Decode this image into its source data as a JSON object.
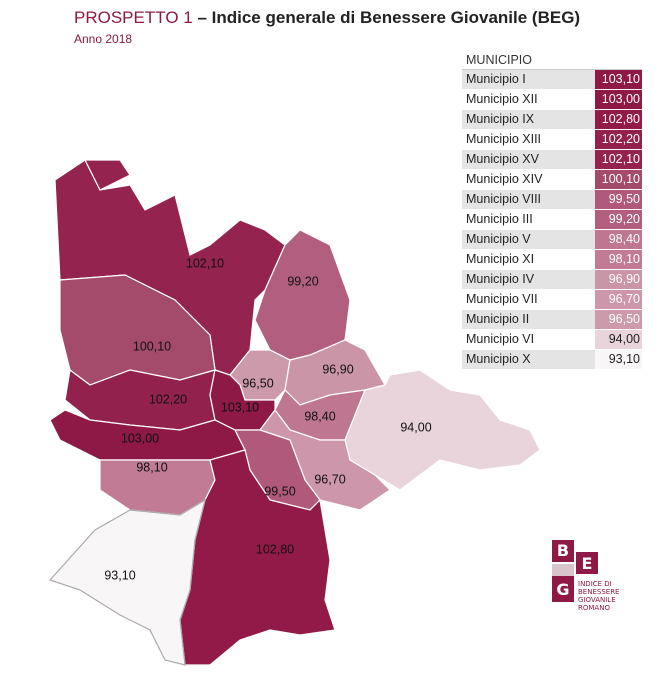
{
  "header": {
    "title_prefix": "PROSPETTO 1",
    "title_rest": "– Indice generale di Benessere Giovanile (BEG)",
    "subtitle": "Anno 2018"
  },
  "table": {
    "header": "MUNICIPIO",
    "rows": [
      [
        "Municipio I",
        "103,10"
      ],
      [
        "Municipio XII",
        "103,00"
      ],
      [
        "Municipio IX",
        "102,80"
      ],
      [
        "Municipio XIII",
        "102,20"
      ],
      [
        "Municipio XV",
        "102,10"
      ],
      [
        "Municipio XIV",
        "100,10"
      ],
      [
        "Municipio VIII",
        "99,50"
      ],
      [
        "Municipio III",
        "99,20"
      ],
      [
        "Municipio V",
        "98,40"
      ],
      [
        "Municipio XI",
        "98,10"
      ],
      [
        "Municipio IV",
        "96,90"
      ],
      [
        "Municipio VII",
        "96,70"
      ],
      [
        "Municipio II",
        "96,50"
      ],
      [
        "Municipio VI",
        "94,00"
      ],
      [
        "Municipio X",
        "93,10"
      ]
    ]
  },
  "map": {
    "labels": [
      "102,10",
      "99,20",
      "100,10",
      "96,50",
      "96,90",
      "102,20",
      "103,10",
      "98,40",
      "94,00",
      "103,00",
      "98,10",
      "96,70",
      "99,50",
      "102,80",
      "93,10"
    ]
  },
  "logo": {
    "letters": [
      "B",
      "E",
      "G"
    ],
    "lines": [
      "INDICE DI",
      "BENESSERE",
      "GIOVANILE",
      "ROMANO"
    ]
  }
}
